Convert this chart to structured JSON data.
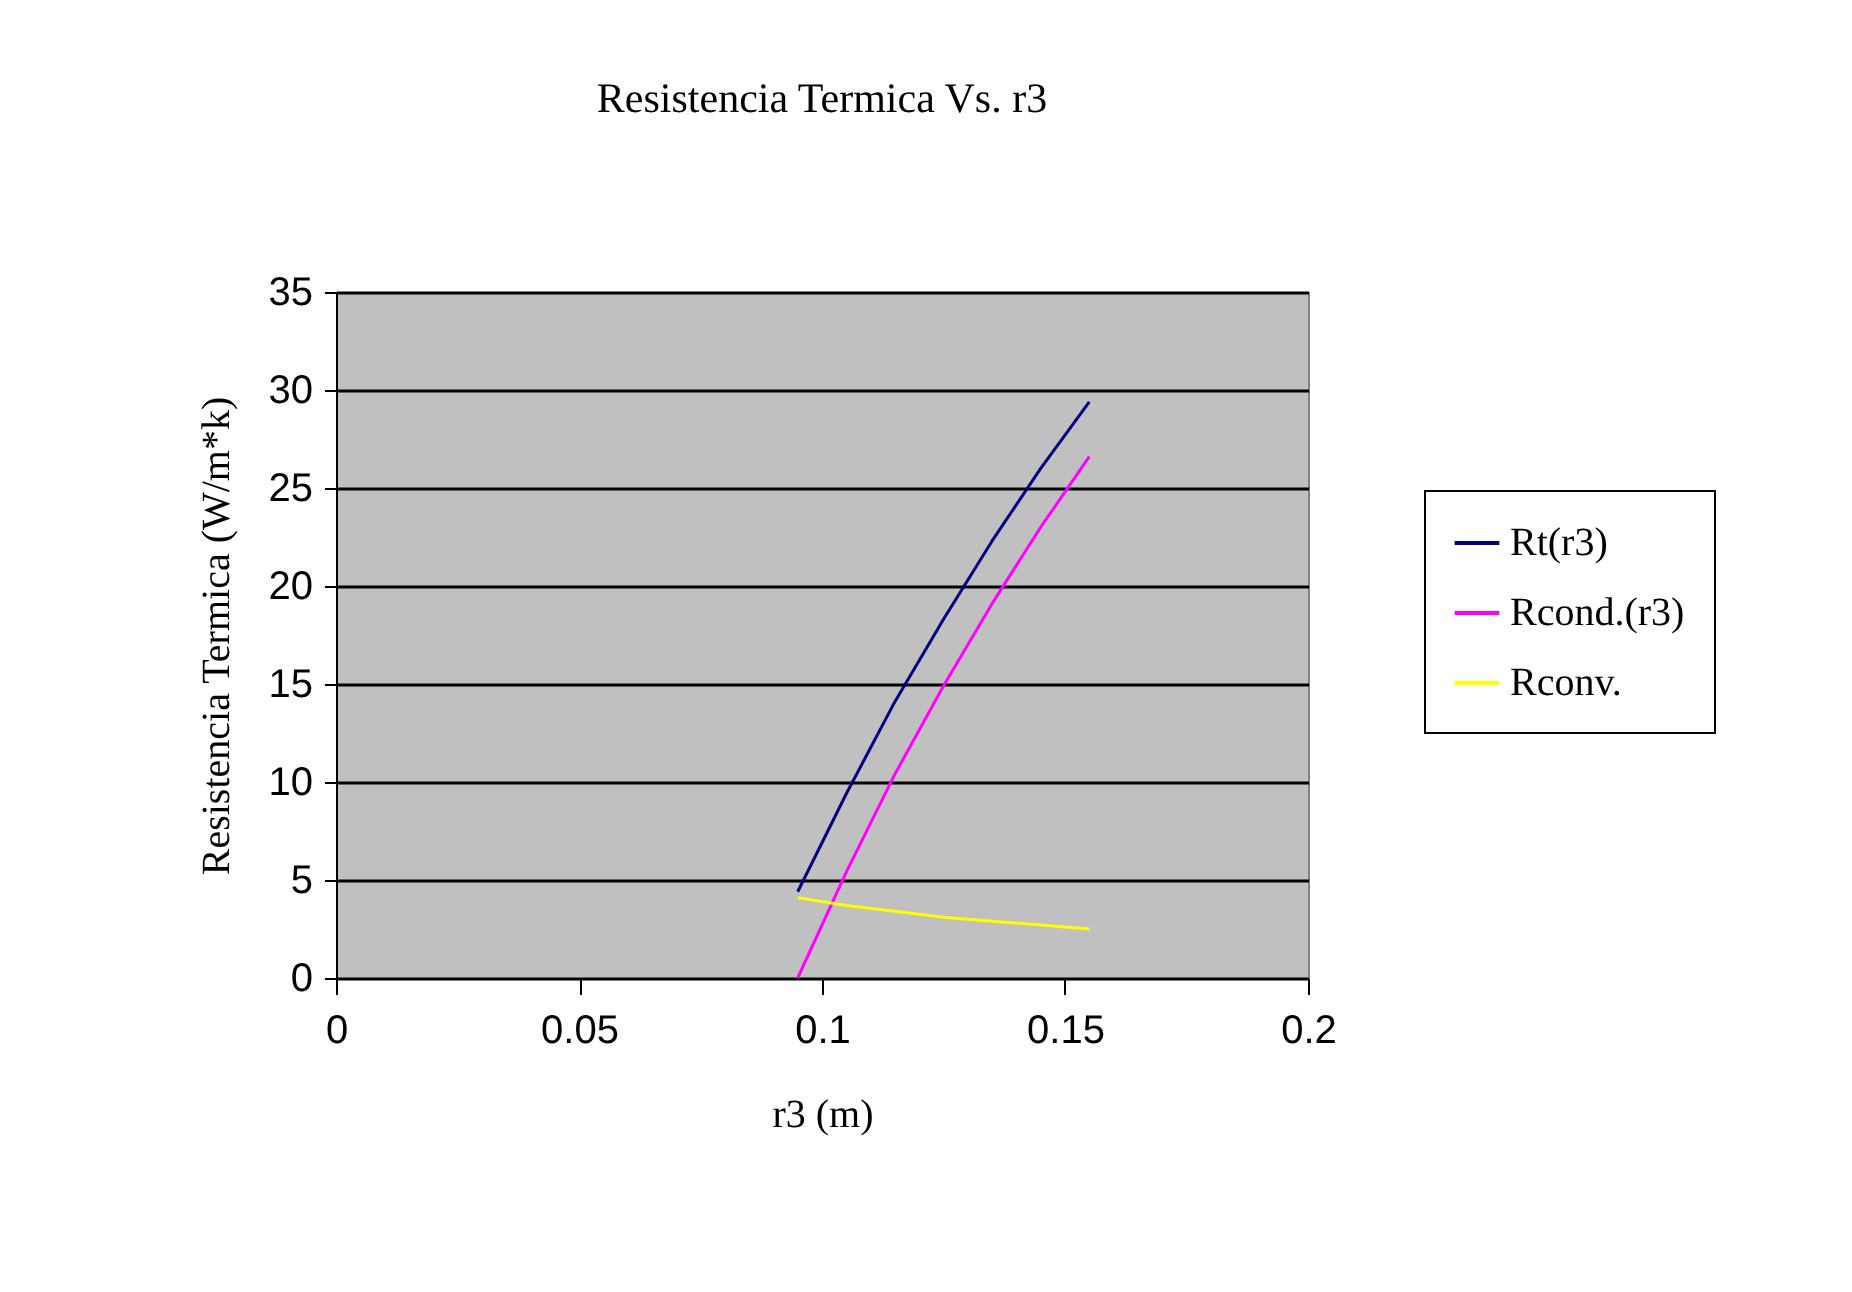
{
  "chart_data": {
    "type": "line",
    "title": "Resistencia Termica Vs. r3",
    "xlabel": "r3 (m)",
    "ylabel": "Resistencia Termica (W/m*k)",
    "x": [
      0.095,
      0.105,
      0.115,
      0.125,
      0.135,
      0.145,
      0.155
    ],
    "series": [
      {
        "name": "Rt(r3)",
        "color": "#000080",
        "values": [
          4.4,
          9.4,
          14.1,
          18.3,
          22.3,
          26.0,
          29.4
        ]
      },
      {
        "name": "Rcond.(r3)",
        "color": "#ff00ff",
        "values": [
          0,
          5.4,
          10.4,
          14.9,
          19.1,
          23.0,
          26.6
        ]
      },
      {
        "name": "Rconv.",
        "color": "#ffff00",
        "values": [
          4.1,
          3.7,
          3.4,
          3.1,
          2.9,
          2.7,
          2.5
        ]
      }
    ],
    "xlim": [
      0,
      0.2
    ],
    "xticks": [
      0,
      0.05,
      0.1,
      0.15,
      0.2
    ],
    "ylim": [
      0,
      35
    ],
    "yticks": [
      0,
      5,
      10,
      15,
      20,
      25,
      30,
      35
    ],
    "grid": "y",
    "legend": "right",
    "marker": "none",
    "line_style": "solid"
  }
}
